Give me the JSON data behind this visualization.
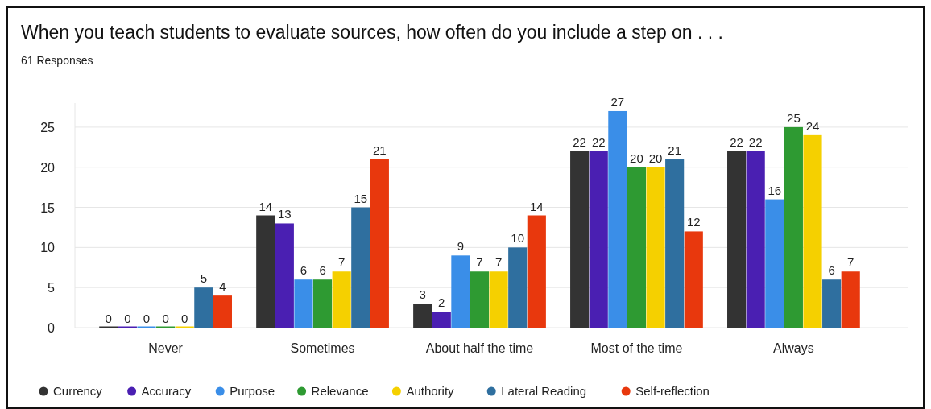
{
  "chart_data": {
    "type": "bar",
    "title": "When you teach students to evaluate sources, how often do you include a step on . . .",
    "subtitle": "61 Responses",
    "categories": [
      "Never",
      "Sometimes",
      "About half the time",
      "Most of the time",
      "Always"
    ],
    "series": [
      {
        "name": "Currency",
        "color": "#333333",
        "values": [
          0,
          14,
          3,
          22,
          22
        ]
      },
      {
        "name": "Accuracy",
        "color": "#4a1fb2",
        "values": [
          0,
          13,
          2,
          22,
          22
        ]
      },
      {
        "name": "Purpose",
        "color": "#3a8ee8",
        "values": [
          0,
          6,
          9,
          27,
          16
        ]
      },
      {
        "name": "Relevance",
        "color": "#2e9a32",
        "values": [
          0,
          6,
          7,
          20,
          25
        ]
      },
      {
        "name": "Authority",
        "color": "#f5d000",
        "values": [
          0,
          7,
          7,
          20,
          24
        ]
      },
      {
        "name": "Lateral Reading",
        "color": "#2f6f9f",
        "values": [
          5,
          15,
          10,
          21,
          6
        ]
      },
      {
        "name": "Self-reflection",
        "color": "#e8380d",
        "values": [
          4,
          21,
          14,
          12,
          7
        ]
      }
    ],
    "ylim": [
      0,
      28
    ],
    "yticks": [
      0,
      5,
      10,
      15,
      20,
      25
    ],
    "grid": "y",
    "legend": "bottom",
    "data_labels": true
  }
}
